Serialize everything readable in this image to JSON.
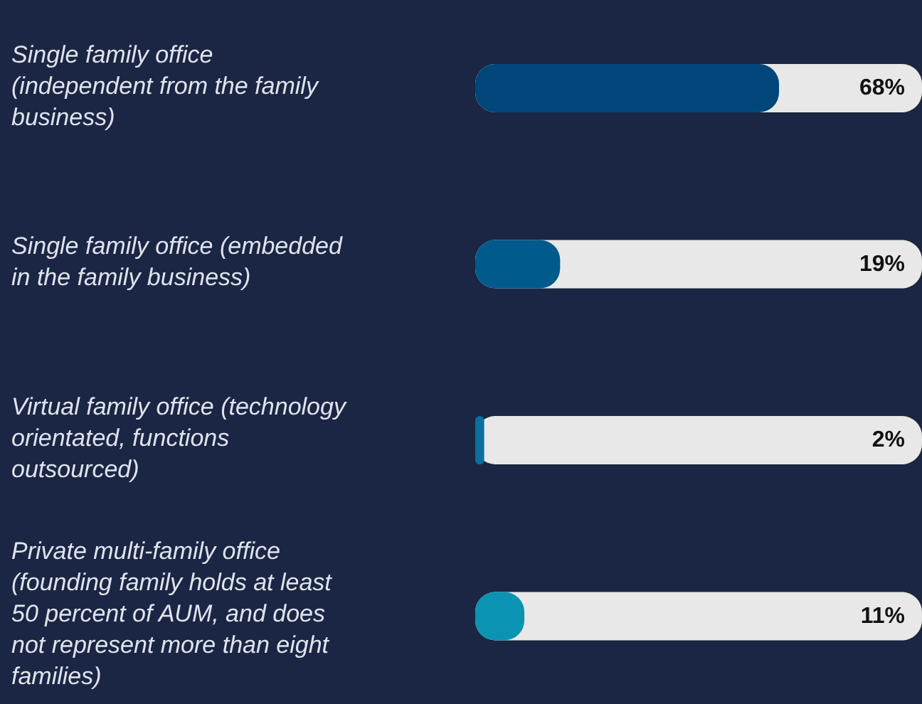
{
  "chart_data": {
    "type": "bar",
    "orientation": "horizontal",
    "categories": [
      "Single family office (independent from the family business)",
      "Single family office (embedded in the family business)",
      "Virtual family office (technology orientated, functions outsourced)",
      "Private multi-family office (founding family holds at least 50 percent of AUM, and does not represent more than eight families)"
    ],
    "values": [
      68,
      19,
      2,
      11
    ],
    "colors": [
      "#00467a",
      "#005a8c",
      "#0a6f9e",
      "#0b93b3"
    ],
    "value_labels": [
      "68%",
      "19%",
      "2%",
      "11%"
    ],
    "xlim": [
      0,
      100
    ],
    "tick_labels": "y",
    "grid": false,
    "legend": false
  }
}
